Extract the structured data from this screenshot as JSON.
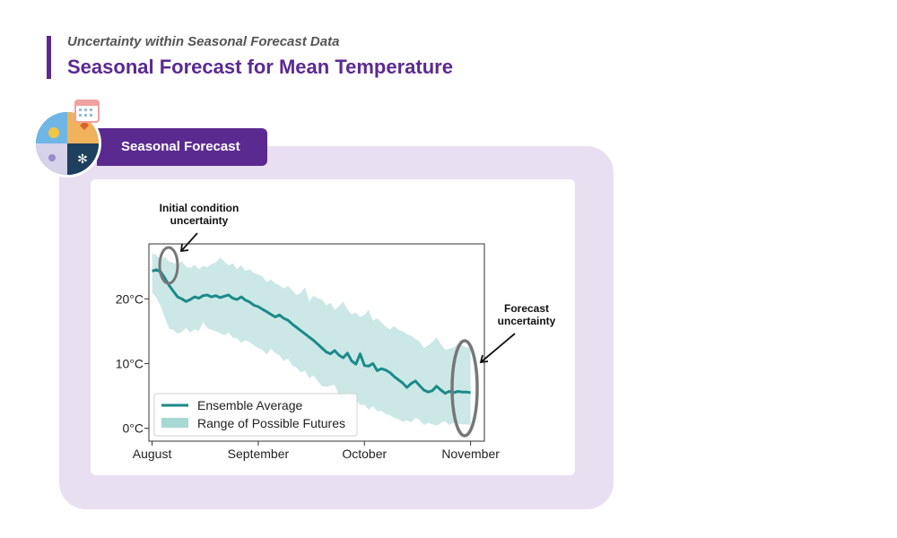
{
  "header": {
    "subtitle": "Uncertainty within Seasonal Forecast Data",
    "title": "Seasonal Forecast for Mean Temperature"
  },
  "badge": {
    "label": "Seasonal Forecast"
  },
  "colors": {
    "brand": "#5b2a91",
    "panel": "#e8dff1",
    "ensemble_line": "#1b8a8a",
    "range_fill": "#a8d8d6",
    "annotation_ellipse": "#777777"
  },
  "annotations": {
    "initial": [
      "Initial condition",
      "uncertainty"
    ],
    "forecast": [
      "Forecast",
      "uncertainty"
    ]
  },
  "chart_data": {
    "type": "area",
    "title": "",
    "xlabel": "",
    "ylabel": "",
    "x_ticks": [
      "August",
      "September",
      "October",
      "November"
    ],
    "y_ticks": [
      "0°C",
      "10°C",
      "20°C"
    ],
    "y_tick_values": [
      0,
      10,
      20
    ],
    "ylim": [
      -2,
      28.5
    ],
    "xlim": [
      -0.03,
      3.13
    ],
    "grid": false,
    "legend": {
      "placement": "lower-left",
      "entries": [
        "Ensemble Average",
        "Range of Possible Futures"
      ]
    },
    "x": [
      0,
      0.04,
      0.08,
      0.12,
      0.16,
      0.2,
      0.24,
      0.28,
      0.32,
      0.36,
      0.4,
      0.44,
      0.48,
      0.52,
      0.56,
      0.6,
      0.64,
      0.68,
      0.72,
      0.76,
      0.8,
      0.84,
      0.88,
      0.92,
      0.96,
      1,
      1.04,
      1.08,
      1.12,
      1.16,
      1.2,
      1.24,
      1.28,
      1.32,
      1.36,
      1.4,
      1.44,
      1.48,
      1.52,
      1.56,
      1.6,
      1.64,
      1.68,
      1.72,
      1.76,
      1.8,
      1.84,
      1.88,
      1.92,
      1.96,
      2,
      2.04,
      2.08,
      2.12,
      2.16,
      2.2,
      2.24,
      2.28,
      2.32,
      2.36,
      2.4,
      2.44,
      2.48,
      2.52,
      2.56,
      2.6,
      2.64,
      2.68,
      2.72,
      2.76,
      2.8,
      2.84,
      2.88,
      2.92,
      2.96,
      3
    ],
    "series": [
      {
        "name": "Ensemble Average",
        "values": [
          24.3,
          24.5,
          24.2,
          23.2,
          22.1,
          21.2,
          20.3,
          20.0,
          19.6,
          19.9,
          20.3,
          20.1,
          20.5,
          20.6,
          20.3,
          20.5,
          20.2,
          20.4,
          20.6,
          20.1,
          19.9,
          20.3,
          19.8,
          19.5,
          19.0,
          18.8,
          18.4,
          18.0,
          17.6,
          17.2,
          17.5,
          17.0,
          16.7,
          16.1,
          15.6,
          15.1,
          14.6,
          14.1,
          13.6,
          13.0,
          12.4,
          11.8,
          11.5,
          12.0,
          11.3,
          10.9,
          11.6,
          10.4,
          9.9,
          11.5,
          9.7,
          9.6,
          10.0,
          8.9,
          9.2,
          9.0,
          8.6,
          8.0,
          7.5,
          7.0,
          6.3,
          6.9,
          7.3,
          6.6,
          5.9,
          5.6,
          5.8,
          6.5,
          5.9,
          5.4,
          5.7,
          5.5,
          5.7,
          5.6,
          5.6,
          5.5
        ]
      },
      {
        "name": "Range of Possible Futures",
        "upper": [
          27.0,
          26.8,
          26.0,
          26.5,
          25.8,
          25.6,
          25.3,
          25.8,
          25.0,
          24.8,
          25.3,
          24.6,
          25.1,
          24.9,
          25.4,
          25.6,
          26.4,
          25.8,
          25.2,
          25.5,
          24.6,
          25.2,
          24.3,
          24.6,
          24.0,
          23.8,
          23.5,
          22.6,
          23.0,
          22.4,
          22.1,
          21.6,
          22.0,
          21.3,
          20.6,
          20.9,
          21.8,
          19.6,
          20.5,
          20.1,
          19.9,
          19.0,
          19.4,
          18.3,
          18.9,
          19.6,
          18.4,
          17.6,
          17.9,
          17.2,
          17.5,
          18.3,
          16.6,
          17.0,
          16.4,
          15.7,
          15.3,
          15.8,
          15.2,
          15.0,
          14.5,
          14.3,
          13.8,
          13.4,
          12.4,
          12.8,
          13.3,
          14.1,
          13.0,
          12.1,
          12.3,
          12.5,
          13.0,
          12.8,
          12.5,
          12.5
        ],
        "lower": [
          21.0,
          20.2,
          18.9,
          17.1,
          15.4,
          15.2,
          14.6,
          14.9,
          15.5,
          14.8,
          15.3,
          15.0,
          16.4,
          15.5,
          15.2,
          15.0,
          14.7,
          14.4,
          14.8,
          14.0,
          13.9,
          13.2,
          13.6,
          13.3,
          12.8,
          12.4,
          12.1,
          11.4,
          12.3,
          11.6,
          11.3,
          10.4,
          10.8,
          9.7,
          9.4,
          8.6,
          8.9,
          7.7,
          8.2,
          7.3,
          6.5,
          6.4,
          6.6,
          6.7,
          5.0,
          4.8,
          5.5,
          4.8,
          4.4,
          3.6,
          3.6,
          2.9,
          3.4,
          2.6,
          2.7,
          2.2,
          2.0,
          1.6,
          1.4,
          1.0,
          1.2,
          0.9,
          1.6,
          1.3,
          0.5,
          0.8,
          0.6,
          0.4,
          0.8,
          1.1,
          0.5,
          0.8,
          0.7,
          0.6,
          0.6,
          0.5
        ]
      }
    ]
  }
}
